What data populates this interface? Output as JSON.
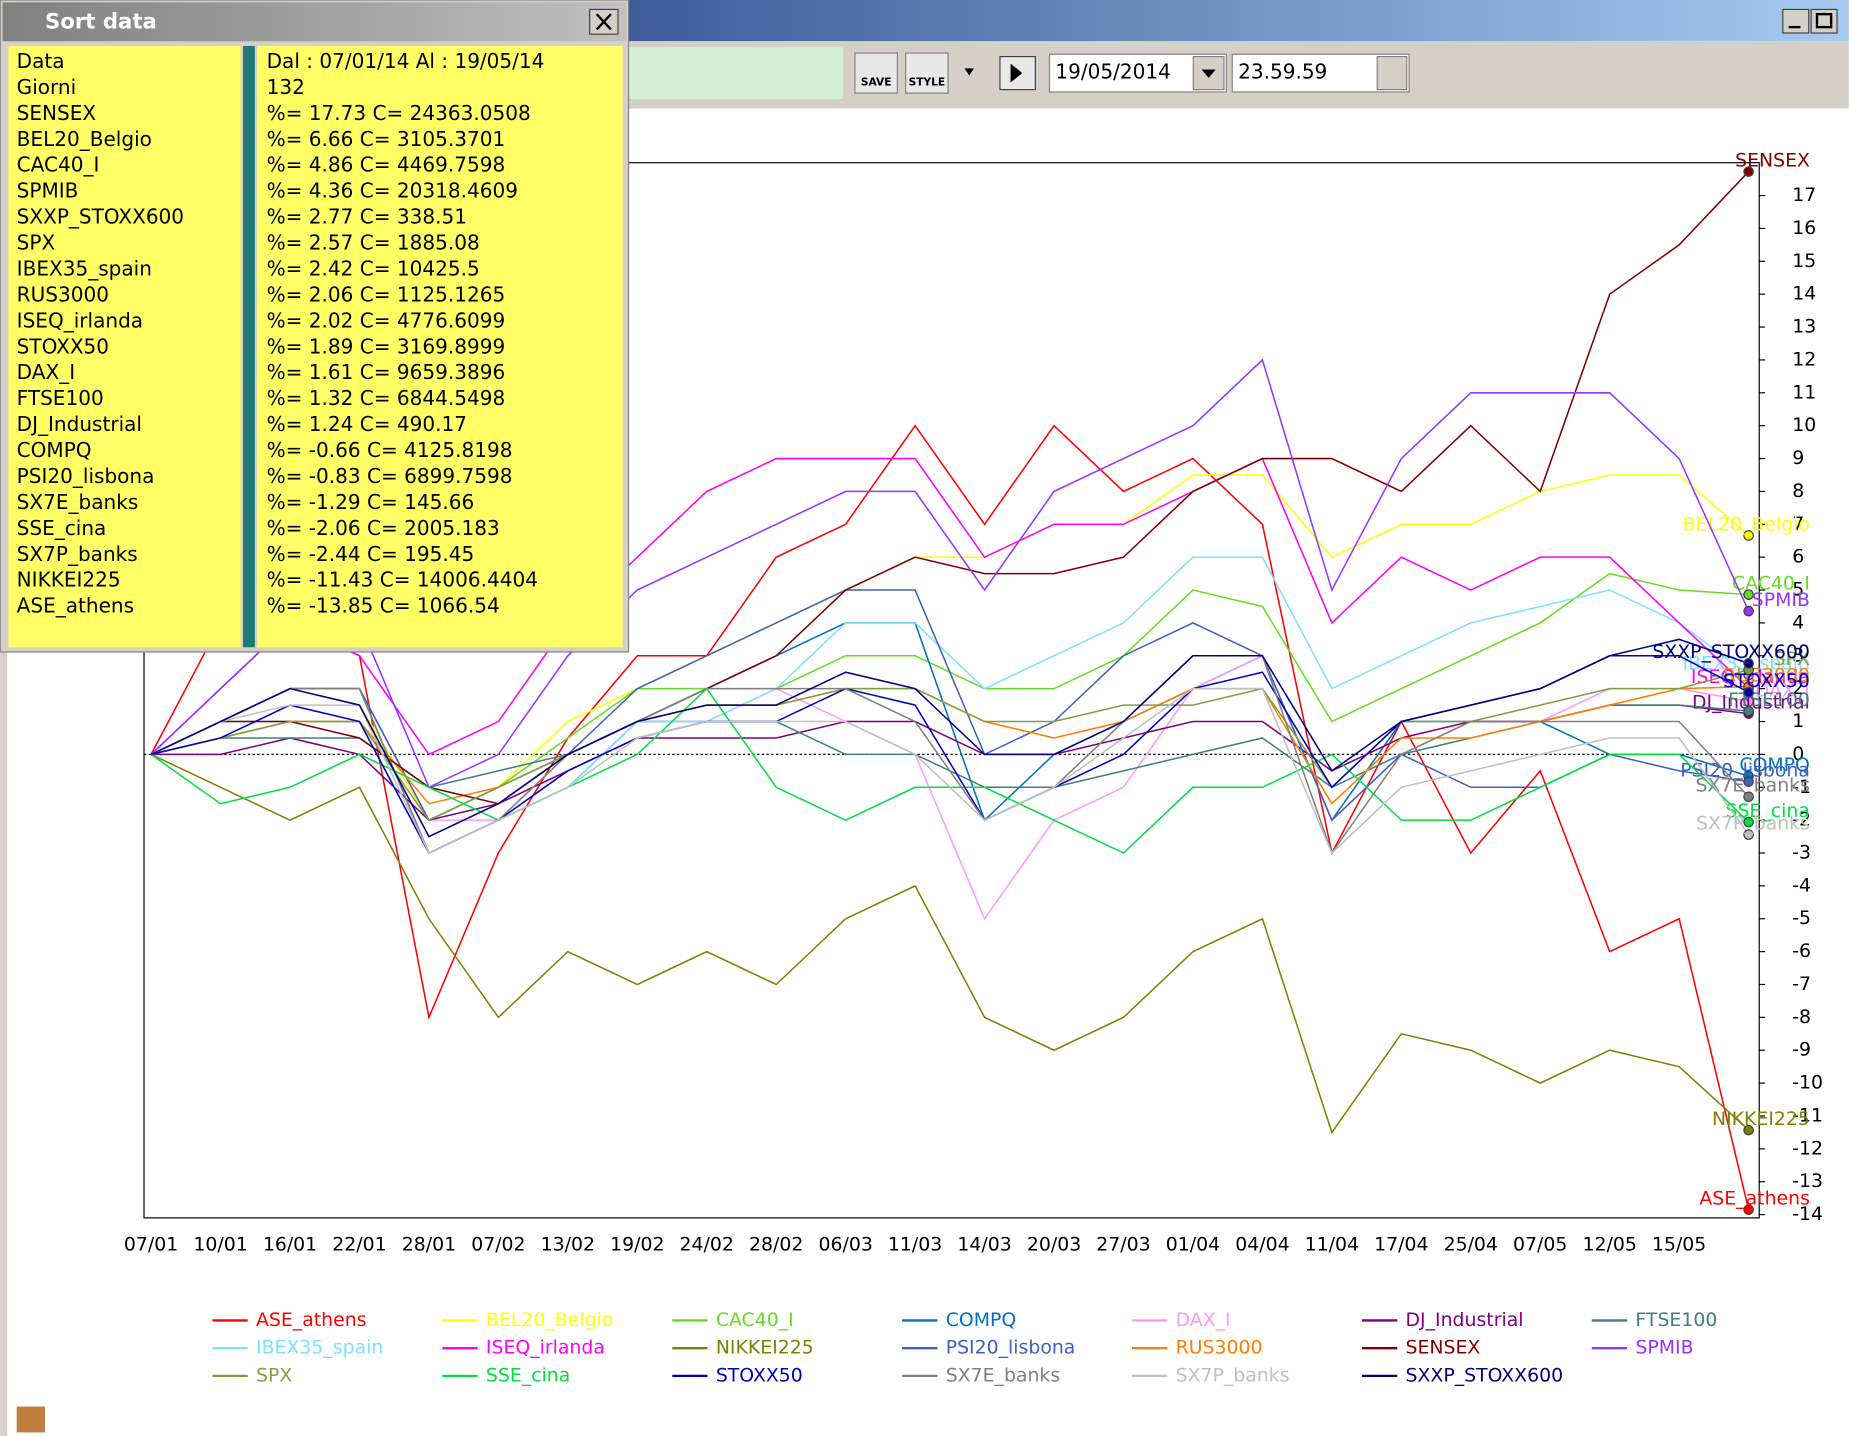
{
  "window": {
    "title": "Sort data"
  },
  "sort_panel": {
    "rows": [
      [
        "Data",
        "Dal : 07/01/14 Al : 19/05/14"
      ],
      [
        "Giorni",
        "132"
      ],
      [
        "SENSEX",
        "%= 17.73 C= 24363.0508"
      ],
      [
        "BEL20_Belgio",
        "%= 6.66 C= 3105.3701"
      ],
      [
        "CAC40_I",
        "%= 4.86 C= 4469.7598"
      ],
      [
        "SPMIB",
        "%= 4.36 C= 20318.4609"
      ],
      [
        "SXXP_STOXX600",
        "%= 2.77 C= 338.51"
      ],
      [
        "SPX",
        "%= 2.57 C= 1885.08"
      ],
      [
        "IBEX35_spain",
        "%= 2.42 C= 10425.5"
      ],
      [
        "RUS3000",
        "%= 2.06 C= 1125.1265"
      ],
      [
        "ISEQ_irlanda",
        "%= 2.02 C= 4776.6099"
      ],
      [
        "STOXX50",
        "%= 1.89 C= 3169.8999"
      ],
      [
        "DAX_I",
        "%= 1.61 C= 9659.3896"
      ],
      [
        "FTSE100",
        "%= 1.32 C= 6844.5498"
      ],
      [
        "DJ_Industrial",
        "%= 1.24 C= 490.17"
      ],
      [
        "COMPQ",
        "%= -0.66 C= 4125.8198"
      ],
      [
        "PSI20_lisbona",
        "%= -0.83 C= 6899.7598"
      ],
      [
        "SX7E_banks",
        "%= -1.29 C= 145.66"
      ],
      [
        "SSE_cina",
        "%= -2.06 C= 2005.183"
      ],
      [
        "SX7P_banks",
        "%= -2.44 C= 195.45"
      ],
      [
        "NIKKEI225",
        "%= -11.43 C= 14006.4404"
      ],
      [
        "ASE_athens",
        "%= -13.85 C= 1066.54"
      ]
    ]
  },
  "toolbar": {
    "save": "SAVE",
    "style": "STYLE",
    "date": "19/05/2014",
    "time": "23.59.59"
  },
  "chart_data": {
    "type": "line",
    "categories": [
      "07/01",
      "10/01",
      "16/01",
      "22/01",
      "28/01",
      "07/02",
      "13/02",
      "19/02",
      "24/02",
      "28/02",
      "06/03",
      "11/03",
      "14/03",
      "20/03",
      "27/03",
      "01/04",
      "04/04",
      "11/04",
      "17/04",
      "25/04",
      "07/05",
      "12/05",
      "15/05",
      null
    ],
    "ylim": [
      -14.1,
      18
    ],
    "yticks": [
      -14,
      -13,
      -12,
      -11,
      -10,
      -9,
      -8,
      -7,
      -6,
      -5,
      -4,
      -3,
      -2,
      -1,
      0,
      1,
      2,
      3,
      4,
      5,
      6,
      7,
      8,
      9,
      10,
      11,
      12,
      13,
      14,
      15,
      16,
      17
    ],
    "series": [
      {
        "name": "ASE_athens",
        "color": "#ff0000",
        "values": [
          0,
          4,
          4,
          3,
          -8,
          -3,
          0.5,
          3,
          3,
          6,
          7,
          10,
          7,
          10,
          8,
          9,
          7,
          -3,
          1,
          -3,
          -0.5,
          -6,
          -5,
          -13.85
        ]
      },
      {
        "name": "BEL20_Belgio",
        "color": "#ffff00",
        "values": [
          0,
          1,
          2,
          1.5,
          -2,
          -1,
          1,
          2,
          3,
          4,
          5,
          6,
          6,
          7,
          7,
          8.5,
          8.5,
          6,
          7,
          7,
          8,
          8.5,
          8.5,
          6.66
        ]
      },
      {
        "name": "CAC40_I",
        "color": "#66dd22",
        "values": [
          0,
          1,
          2,
          2,
          -2,
          -1,
          0.5,
          2,
          2,
          2,
          3,
          3,
          2,
          2,
          3,
          5,
          4.5,
          1,
          2,
          3,
          4,
          5.5,
          5,
          4.86
        ]
      },
      {
        "name": "COMPQ",
        "color": "#0070c0",
        "values": [
          0,
          1,
          2,
          2,
          -3,
          -2,
          -1,
          1,
          2,
          3,
          4,
          4,
          -2,
          0,
          1,
          2,
          3,
          -2,
          1,
          1,
          1,
          0,
          0,
          -0.66
        ]
      },
      {
        "name": "DAX_I",
        "color": "#ff99ff",
        "values": [
          0,
          1,
          2,
          2,
          -2,
          -2,
          0,
          1,
          1,
          2,
          1,
          0,
          -5,
          -2,
          -1,
          2,
          3,
          -2,
          0,
          1,
          1,
          2,
          2,
          1.61
        ]
      },
      {
        "name": "DJ_Industrial",
        "color": "#800080",
        "values": [
          0,
          0,
          0.5,
          0,
          -2,
          -1.5,
          -0.5,
          0.5,
          0.5,
          0.5,
          1,
          1,
          0,
          0,
          0.5,
          1,
          1,
          -0.5,
          0.5,
          1,
          1,
          1.5,
          1.5,
          1.24
        ]
      },
      {
        "name": "FTSE100",
        "color": "#408080",
        "values": [
          0,
          0.5,
          0.5,
          0.5,
          -1,
          -0.5,
          0,
          1,
          1,
          1,
          0,
          0,
          -1,
          -1,
          -0.5,
          0,
          0.5,
          -1,
          0,
          0.5,
          1,
          1.5,
          1.5,
          1.32
        ]
      },
      {
        "name": "IBEX35_spain",
        "color": "#80e0ff",
        "values": [
          0,
          1,
          1,
          1,
          -3,
          -2,
          -1,
          1,
          1,
          2,
          4,
          4,
          2,
          3,
          4,
          6,
          6,
          2,
          3,
          4,
          4.5,
          5,
          4,
          2.42
        ]
      },
      {
        "name": "ISEQ_irlanda",
        "color": "#ff00ff",
        "values": [
          0,
          2,
          4,
          3,
          0,
          1,
          4,
          6,
          8,
          9,
          9,
          9,
          6,
          7,
          7,
          8,
          9,
          4,
          6,
          5,
          6,
          6,
          4,
          2.02
        ]
      },
      {
        "name": "NIKKEI225",
        "color": "#808000",
        "values": [
          0,
          -1,
          -2,
          -1,
          -5,
          -8,
          -6,
          -7,
          -6,
          -7,
          -5,
          -4,
          -8,
          -9,
          -8,
          -6,
          -5,
          -11.5,
          -8.5,
          -9,
          -10,
          -9,
          -9.5,
          -11.43
        ]
      },
      {
        "name": "PSI20_lisbona",
        "color": "#4060c0",
        "values": [
          0,
          1,
          2,
          2,
          -2,
          -1,
          0,
          2,
          3,
          4,
          5,
          5,
          0,
          1,
          3,
          4,
          3,
          -2,
          0,
          -1,
          -1,
          0,
          -0.5,
          -0.83
        ]
      },
      {
        "name": "RUS3000",
        "color": "#ff8000",
        "values": [
          0,
          0.5,
          1,
          1,
          -1.5,
          -1,
          0,
          1,
          1.5,
          1.5,
          2,
          2,
          1,
          0.5,
          1,
          2,
          2,
          -1.5,
          0.5,
          0.5,
          1,
          1.5,
          2,
          2.06
        ]
      },
      {
        "name": "SENSEX",
        "color": "#800000",
        "values": [
          0,
          1,
          1,
          0.5,
          -1,
          -1.5,
          0,
          1,
          2,
          3,
          5,
          6,
          5.5,
          5.5,
          6,
          8,
          9,
          9,
          8,
          10,
          8,
          14,
          15.5,
          17.73
        ]
      },
      {
        "name": "SPMIB",
        "color": "#9933ff",
        "values": [
          0,
          2,
          4,
          4,
          -1,
          0,
          3,
          5,
          6,
          7,
          8,
          8,
          5,
          8,
          9,
          10,
          12,
          5,
          9,
          11,
          11,
          11,
          9,
          4.36
        ]
      },
      {
        "name": "SPX",
        "color": "#80a040",
        "values": [
          0,
          0.5,
          1,
          1,
          -2,
          -1,
          0,
          1,
          1.5,
          1.5,
          2,
          2,
          1,
          1,
          1.5,
          1.5,
          2,
          -1,
          1,
          1,
          1.5,
          2,
          2,
          2.57
        ]
      },
      {
        "name": "SSE_cina",
        "color": "#00e040",
        "values": [
          0,
          -1.5,
          -1,
          0,
          -1,
          -2,
          -1,
          0,
          2,
          -1,
          -2,
          -1,
          -1,
          -2,
          -3,
          -1,
          -1,
          0,
          -2,
          -2,
          -1,
          0,
          0,
          -2.06
        ]
      },
      {
        "name": "STOXX50",
        "color": "#0000c0",
        "values": [
          0,
          0.5,
          1.5,
          1,
          -3,
          -2,
          -0.5,
          0.5,
          1,
          1,
          2,
          1.5,
          -2,
          -1,
          0,
          2,
          2.5,
          -1,
          1,
          1.5,
          2,
          3,
          3,
          1.89
        ]
      },
      {
        "name": "SX7E_banks",
        "color": "#808080",
        "values": [
          0,
          1,
          2,
          2,
          -3,
          -2,
          0,
          1,
          2,
          2,
          2,
          1,
          -2,
          -1,
          1,
          3,
          3,
          -3,
          0,
          1,
          1,
          1,
          1,
          -1.29
        ]
      },
      {
        "name": "SX7P_banks",
        "color": "#c0c0c0",
        "values": [
          0,
          1,
          1.5,
          1.5,
          -3,
          -2,
          -1,
          0.5,
          1,
          1,
          1,
          0,
          -2,
          -1,
          0.5,
          2,
          2,
          -3,
          -1,
          -0.5,
          0,
          0.5,
          0.5,
          -2.44
        ]
      },
      {
        "name": "SXXP_STOXX600",
        "color": "#000080",
        "values": [
          0,
          1,
          2,
          1.5,
          -2.5,
          -1.5,
          0,
          1,
          1.5,
          1.5,
          2.5,
          2,
          0,
          0,
          1,
          3,
          3,
          -0.5,
          1,
          1.5,
          2,
          3,
          3.5,
          2.77
        ]
      }
    ]
  }
}
